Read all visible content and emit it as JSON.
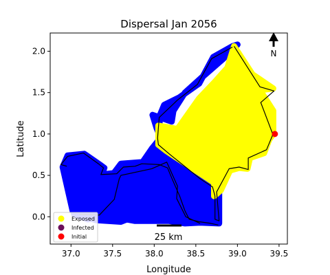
{
  "chart_data": {
    "type": "scatter",
    "title": "Dispersal Jan 2056",
    "xlabel": "Longitude",
    "ylabel": "Latitude",
    "xlim": [
      36.75,
      39.6
    ],
    "ylim": [
      -0.33,
      2.22
    ],
    "xticks": [
      37.0,
      37.5,
      38.0,
      38.5,
      39.0,
      39.5
    ],
    "yticks": [
      0.0,
      0.5,
      1.0,
      1.5,
      2.0
    ],
    "xtick_labels": [
      "37.0",
      "37.5",
      "38.0",
      "38.5",
      "39.0",
      "39.5"
    ],
    "ytick_labels": [
      "0.0",
      "0.5",
      "1.0",
      "1.5",
      "2.0"
    ],
    "grid": false,
    "legend": {
      "placement": "lower-left",
      "entries": [
        {
          "label": "Exposed",
          "color": "#ffff00"
        },
        {
          "label": "Infected",
          "color": "#6b0f5a"
        },
        {
          "label": "Initial",
          "color": "#ff0000"
        }
      ]
    },
    "regions": {
      "east": {
        "color": "#ffff00",
        "outline": [
          [
            38.96,
            2.06
          ],
          [
            38.88,
            1.8
          ],
          [
            38.72,
            1.62
          ],
          [
            38.54,
            1.43
          ],
          [
            38.28,
            1.06
          ],
          [
            38.05,
            1.1
          ],
          [
            38.05,
            0.87
          ],
          [
            38.14,
            0.8
          ],
          [
            38.72,
            0.41
          ],
          [
            38.72,
            0.25
          ],
          [
            38.8,
            0.32
          ],
          [
            38.91,
            0.56
          ],
          [
            39.02,
            0.59
          ],
          [
            39.12,
            0.58
          ],
          [
            39.15,
            0.71
          ],
          [
            39.32,
            0.77
          ],
          [
            39.38,
            0.93
          ],
          [
            39.43,
            1.0
          ],
          [
            39.43,
            1.28
          ],
          [
            39.27,
            1.53
          ],
          [
            39.43,
            1.55
          ],
          [
            39.18,
            1.72
          ]
        ]
      },
      "central": {
        "color": "#0000ff",
        "outline": [
          [
            38.21,
            1.15
          ],
          [
            37.98,
            1.23
          ],
          [
            38.03,
            1.07
          ],
          [
            38.11,
            0.88
          ],
          [
            38.78,
            0.32
          ],
          [
            38.78,
            -0.08
          ],
          [
            38.55,
            -0.07
          ],
          [
            38.37,
            -0.08
          ],
          [
            38.18,
            -0.05
          ],
          [
            37.77,
            -0.05
          ],
          [
            37.44,
            0.01
          ],
          [
            37.2,
            -0.03
          ],
          [
            37.04,
            0.03
          ],
          [
            37.02,
            0.09
          ],
          [
            37.18,
            0.13
          ],
          [
            37.45,
            0.44
          ],
          [
            37.6,
            0.64
          ],
          [
            37.86,
            0.66
          ],
          [
            37.97,
            0.82
          ],
          [
            38.05,
            0.92
          ],
          [
            38.07,
            1.23
          ],
          [
            38.12,
            1.35
          ],
          [
            38.3,
            1.44
          ],
          [
            38.54,
            1.61
          ],
          [
            38.71,
            1.93
          ],
          [
            38.94,
            2.06
          ],
          [
            39.0,
            2.08
          ],
          [
            38.82,
            1.9
          ],
          [
            38.58,
            1.69
          ],
          [
            38.37,
            1.5
          ],
          [
            38.23,
            1.28
          ]
        ]
      },
      "southwest": {
        "color": "#0000ff",
        "outline": [
          [
            37.02,
            0.07
          ],
          [
            36.9,
            0.6
          ],
          [
            36.96,
            0.74
          ],
          [
            37.16,
            0.76
          ],
          [
            37.36,
            0.62
          ],
          [
            37.4,
            0.59
          ],
          [
            37.37,
            0.51
          ],
          [
            37.55,
            0.53
          ],
          [
            37.62,
            0.6
          ],
          [
            37.77,
            0.61
          ],
          [
            37.96,
            0.59
          ],
          [
            38.02,
            0.65
          ],
          [
            38.22,
            0.62
          ],
          [
            38.1,
            0.46
          ],
          [
            38.0,
            0.2
          ],
          [
            37.8,
            0.02
          ],
          [
            37.6,
            -0.06
          ],
          [
            37.3,
            -0.04
          ],
          [
            37.17,
            0.0
          ]
        ]
      },
      "boundaries": [
        [
          [
            38.94,
            2.05
          ],
          [
            38.69,
            1.91
          ],
          [
            38.52,
            1.6
          ],
          [
            38.28,
            1.41
          ],
          [
            38.06,
            1.2
          ],
          [
            38.04,
            0.95
          ],
          [
            38.05,
            0.87
          ],
          [
            38.18,
            0.76
          ],
          [
            38.55,
            0.46
          ],
          [
            38.7,
            0.36
          ],
          [
            38.73,
            0.25
          ],
          [
            38.73,
            -0.03
          ],
          [
            38.78,
            -0.05
          ],
          [
            38.75,
            0.3
          ],
          [
            38.9,
            0.58
          ],
          [
            39.02,
            0.6
          ],
          [
            39.13,
            0.57
          ],
          [
            39.13,
            0.71
          ],
          [
            39.35,
            0.81
          ],
          [
            39.42,
            0.98
          ],
          [
            39.42,
            1.01
          ],
          [
            39.28,
            1.38
          ],
          [
            39.44,
            1.52
          ],
          [
            39.27,
            1.57
          ],
          [
            38.96,
            2.06
          ]
        ],
        [
          [
            36.95,
            0.61
          ],
          [
            36.88,
            0.63
          ],
          [
            36.96,
            0.73
          ],
          [
            37.15,
            0.77
          ],
          [
            37.33,
            0.64
          ],
          [
            37.39,
            0.59
          ],
          [
            37.36,
            0.51
          ],
          [
            37.55,
            0.52
          ],
          [
            37.63,
            0.6
          ],
          [
            37.77,
            0.61
          ],
          [
            37.85,
            0.64
          ],
          [
            38.06,
            0.63
          ],
          [
            38.16,
            0.59
          ],
          [
            38.21,
            0.47
          ],
          [
            38.31,
            0.24
          ],
          [
            38.37,
            0.07
          ],
          [
            38.42,
            -0.03
          ],
          [
            38.54,
            -0.06
          ],
          [
            38.68,
            -0.08
          ],
          [
            38.77,
            -0.1
          ]
        ],
        [
          [
            37.1,
            0.03
          ],
          [
            37.34,
            0.02
          ],
          [
            37.52,
            0.21
          ],
          [
            37.58,
            0.46
          ],
          [
            37.6,
            0.5
          ],
          [
            37.97,
            0.58
          ],
          [
            38.15,
            0.66
          ],
          [
            38.28,
            0.37
          ],
          [
            38.27,
            0.22
          ],
          [
            38.38,
            0.0
          ],
          [
            38.55,
            -0.08
          ]
        ]
      ]
    },
    "points": [
      {
        "status": "Initial",
        "x": 39.45,
        "y": 1.0
      }
    ],
    "north_arrow_label": "N",
    "scalebar_label": "25 km"
  }
}
